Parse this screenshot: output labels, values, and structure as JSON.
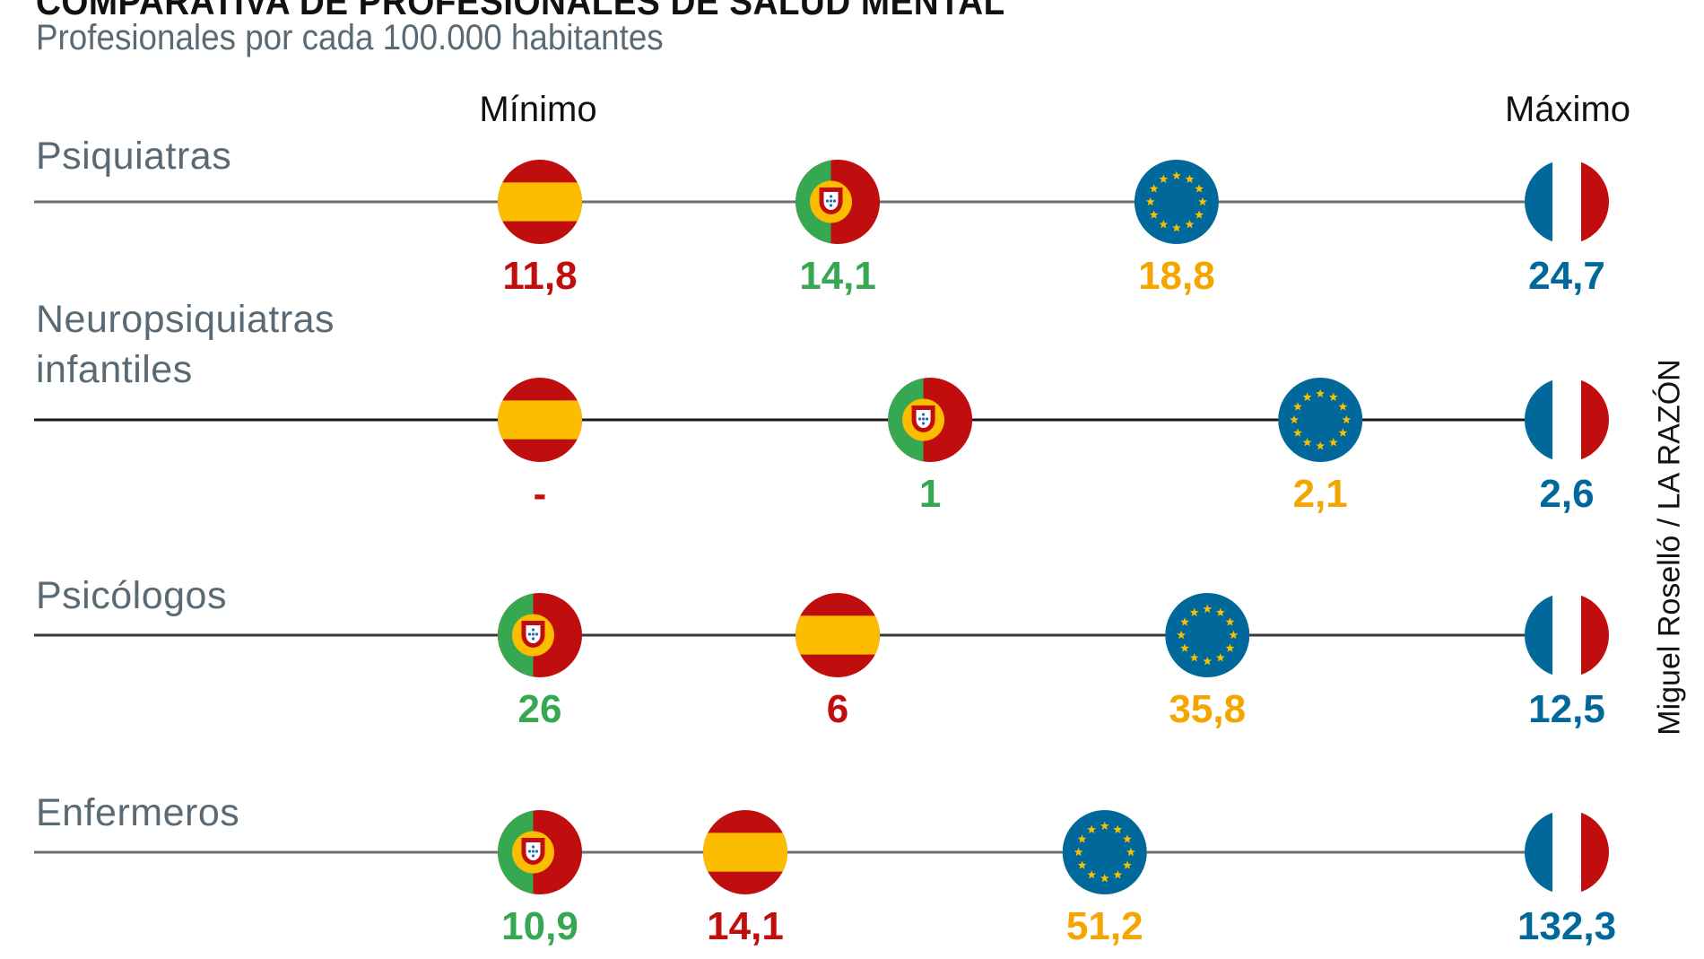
{
  "header": {
    "title": "COMPARATIVA DE PROFESIONALES DE SALUD MENTAL",
    "subtitle": "Profesionales por cada 100.000 habitantes",
    "min_label": "Mínimo",
    "max_label": "Máximo"
  },
  "credit": "Miguel Roselló / LA RAZÓN",
  "colors": {
    "spain": "#c00d0d",
    "spain_yellow": "#fcbd00",
    "portugal": "#36a852",
    "eu": "#f5a500",
    "eu_blue": "#00689a",
    "france": "#00689a",
    "label_gray": "#5a6a75"
  },
  "chart_data": {
    "type": "table",
    "title": "COMPARATIVA DE PROFESIONALES DE SALUD MENTAL",
    "subtitle": "Profesionales por cada 100.000 habitantes",
    "unit": "profesionales por 100.000 habitantes",
    "scale_labels": [
      "Mínimo",
      "Máximo"
    ],
    "entities": [
      "España",
      "Portugal",
      "UE",
      "Francia"
    ],
    "rows": [
      {
        "label": "Psiquiatras",
        "points": [
          {
            "entity": "España",
            "flag": "spain",
            "display": "11,8",
            "value": 11.8,
            "pos": 0.0
          },
          {
            "entity": "Portugal",
            "flag": "portugal",
            "display": "14,1",
            "value": 14.1,
            "pos": 0.29
          },
          {
            "entity": "UE",
            "flag": "eu",
            "display": "18,8",
            "value": 18.8,
            "pos": 0.62
          },
          {
            "entity": "Francia",
            "flag": "france",
            "display": "24,7",
            "value": 24.7,
            "pos": 1.0
          }
        ]
      },
      {
        "label": "Neuropsiquiatras infantiles",
        "label_lines": [
          "Neuropsiquiatras",
          "infantiles"
        ],
        "points": [
          {
            "entity": "España",
            "flag": "spain",
            "display": "-",
            "value": null,
            "pos": 0.0
          },
          {
            "entity": "Portugal",
            "flag": "portugal",
            "display": "1",
            "value": 1,
            "pos": 0.38
          },
          {
            "entity": "UE",
            "flag": "eu",
            "display": "2,1",
            "value": 2.1,
            "pos": 0.76
          },
          {
            "entity": "Francia",
            "flag": "france",
            "display": "2,6",
            "value": 2.6,
            "pos": 1.0
          }
        ]
      },
      {
        "label": "Psicólogos",
        "points": [
          {
            "entity": "Portugal",
            "flag": "portugal",
            "display": "26",
            "value": 26,
            "pos": 0.0
          },
          {
            "entity": "España",
            "flag": "spain",
            "display": "6",
            "value": 6,
            "pos": 0.29
          },
          {
            "entity": "UE",
            "flag": "eu",
            "display": "35,8",
            "value": 35.8,
            "pos": 0.65
          },
          {
            "entity": "Francia",
            "flag": "france",
            "display": "12,5",
            "value": 12.5,
            "pos": 1.0
          }
        ]
      },
      {
        "label": "Enfermeros",
        "points": [
          {
            "entity": "Portugal",
            "flag": "portugal",
            "display": "10,9",
            "value": 10.9,
            "pos": 0.0
          },
          {
            "entity": "España",
            "flag": "spain",
            "display": "14,1",
            "value": 14.1,
            "pos": 0.2
          },
          {
            "entity": "UE",
            "flag": "eu",
            "display": "51,2",
            "value": 51.2,
            "pos": 0.55
          },
          {
            "entity": "Francia",
            "flag": "france",
            "display": "132,3",
            "value": 132.3,
            "pos": 1.0
          }
        ]
      }
    ]
  }
}
